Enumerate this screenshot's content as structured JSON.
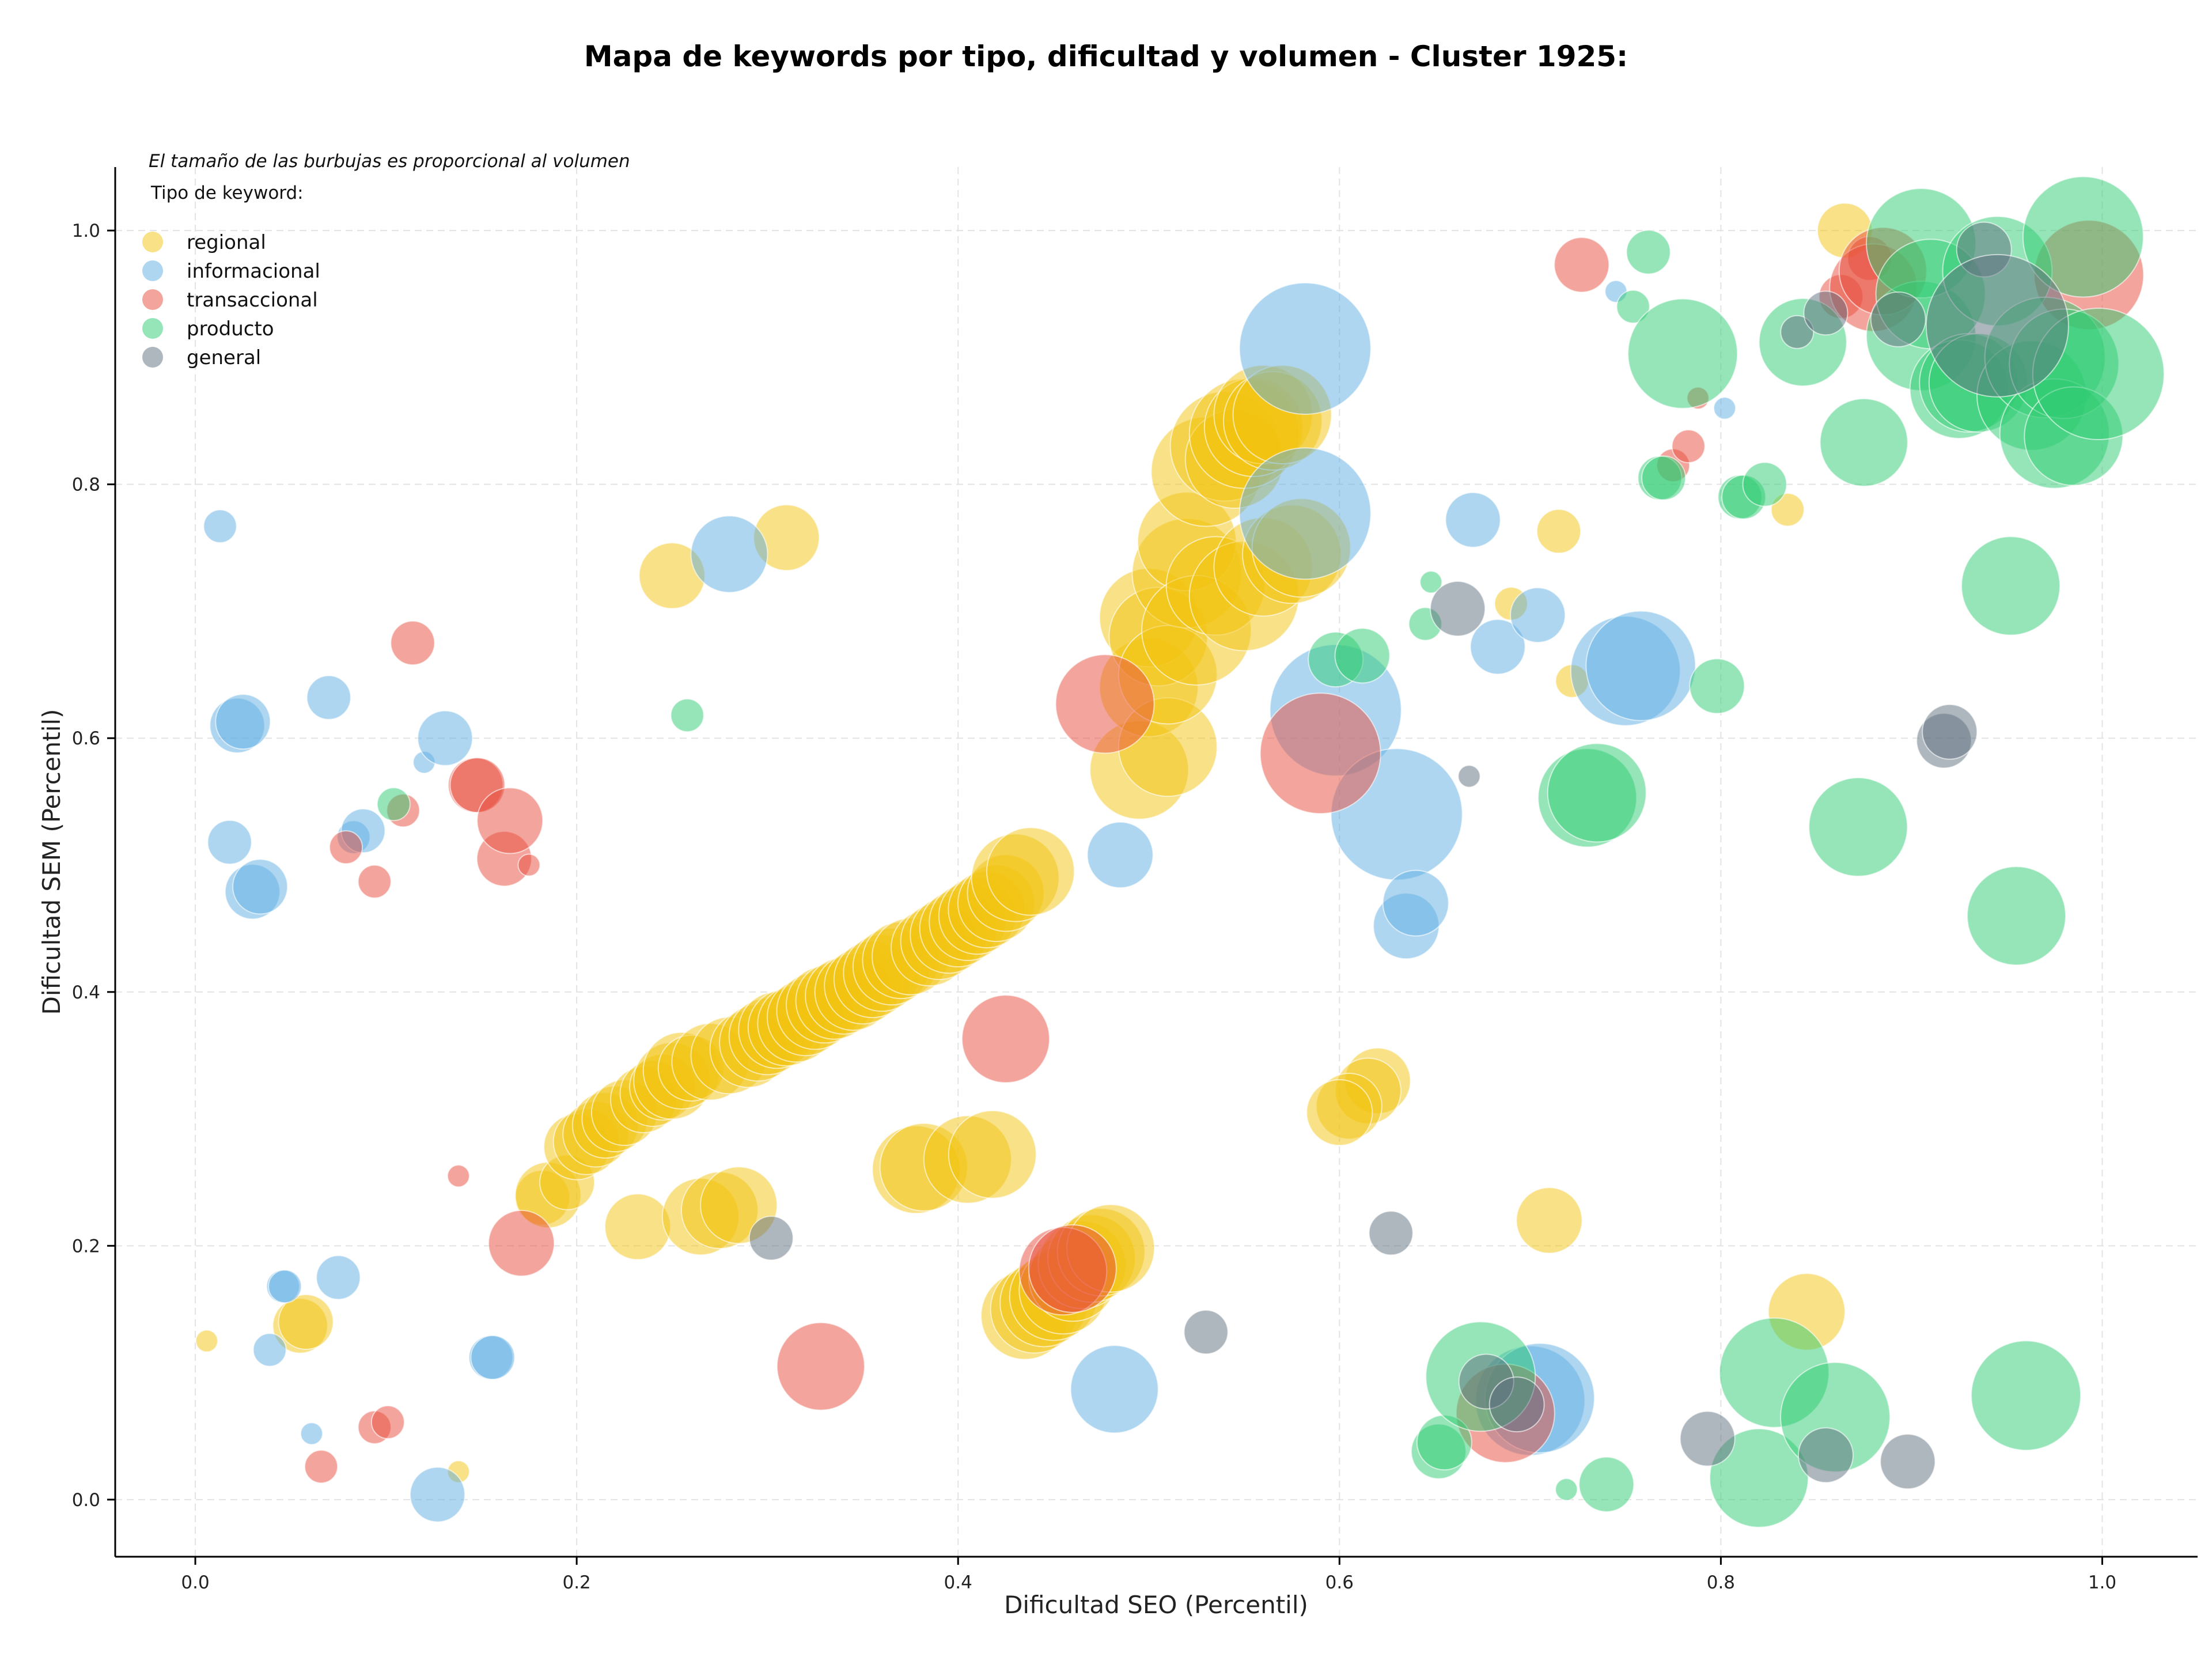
{
  "chart_data": {
    "type": "scatter",
    "title": "Mapa de keywords por tipo, dificultad y volumen - Cluster 1925:",
    "xlabel": "Dificultad SEO (Percentil)",
    "ylabel": "Dificultad SEM (Percentil)",
    "note": "El tamaño de las burbujas es proporcional al volumen",
    "xlim": [
      -0.042,
      1.05
    ],
    "ylim": [
      -0.045,
      1.05
    ],
    "xticks": [
      "0.0",
      "0.2",
      "0.4",
      "0.6",
      "0.8",
      "1.0"
    ],
    "yticks": [
      "0.0",
      "0.2",
      "0.4",
      "0.6",
      "0.8",
      "1.0"
    ],
    "grid": true,
    "legend": {
      "title": "Tipo de keyword:",
      "position": "top-left"
    },
    "series": [
      {
        "name": "regional",
        "color": "#F1C40F",
        "points": [
          [
            0.006,
            0.125,
            2
          ],
          [
            0.055,
            0.137,
            5
          ],
          [
            0.058,
            0.14,
            5
          ],
          [
            0.138,
            0.022,
            2
          ],
          [
            0.182,
            0.238,
            5
          ],
          [
            0.185,
            0.24,
            6
          ],
          [
            0.195,
            0.25,
            5
          ],
          [
            0.2,
            0.278,
            6
          ],
          [
            0.205,
            0.282,
            6
          ],
          [
            0.21,
            0.288,
            6
          ],
          [
            0.215,
            0.295,
            6
          ],
          [
            0.22,
            0.3,
            6
          ],
          [
            0.225,
            0.305,
            6
          ],
          [
            0.232,
            0.215,
            6
          ],
          [
            0.235,
            0.315,
            6
          ],
          [
            0.24,
            0.32,
            6
          ],
          [
            0.245,
            0.325,
            6
          ],
          [
            0.25,
            0.33,
            7
          ],
          [
            0.255,
            0.338,
            7
          ],
          [
            0.26,
            0.34,
            6
          ],
          [
            0.265,
            0.223,
            7
          ],
          [
            0.27,
            0.345,
            7
          ],
          [
            0.275,
            0.228,
            7
          ],
          [
            0.28,
            0.35,
            7
          ],
          [
            0.285,
            0.232,
            7
          ],
          [
            0.29,
            0.355,
            7
          ],
          [
            0.295,
            0.36,
            7
          ],
          [
            0.3,
            0.365,
            7
          ],
          [
            0.305,
            0.37,
            7
          ],
          [
            0.31,
            0.372,
            7
          ],
          [
            0.315,
            0.375,
            7
          ],
          [
            0.32,
            0.38,
            7
          ],
          [
            0.325,
            0.385,
            7
          ],
          [
            0.33,
            0.39,
            7
          ],
          [
            0.335,
            0.393,
            7
          ],
          [
            0.34,
            0.397,
            7
          ],
          [
            0.345,
            0.4,
            7
          ],
          [
            0.35,
            0.405,
            7
          ],
          [
            0.355,
            0.41,
            7
          ],
          [
            0.36,
            0.415,
            7
          ],
          [
            0.365,
            0.42,
            7
          ],
          [
            0.37,
            0.425,
            7
          ],
          [
            0.375,
            0.428,
            7
          ],
          [
            0.378,
            0.26,
            8
          ],
          [
            0.382,
            0.262,
            8
          ],
          [
            0.385,
            0.435,
            7
          ],
          [
            0.39,
            0.44,
            7
          ],
          [
            0.395,
            0.445,
            7
          ],
          [
            0.4,
            0.45,
            7
          ],
          [
            0.405,
            0.455,
            7
          ],
          [
            0.405,
            0.268,
            8
          ],
          [
            0.41,
            0.46,
            7
          ],
          [
            0.415,
            0.465,
            7
          ],
          [
            0.418,
            0.272,
            8
          ],
          [
            0.42,
            0.47,
            7
          ],
          [
            0.425,
            0.478,
            7
          ],
          [
            0.43,
            0.49,
            8
          ],
          [
            0.435,
            0.145,
            8
          ],
          [
            0.438,
            0.495,
            8
          ],
          [
            0.44,
            0.15,
            8
          ],
          [
            0.445,
            0.155,
            8
          ],
          [
            0.45,
            0.16,
            8
          ],
          [
            0.455,
            0.165,
            8
          ],
          [
            0.46,
            0.175,
            8
          ],
          [
            0.465,
            0.185,
            8
          ],
          [
            0.47,
            0.19,
            8
          ],
          [
            0.475,
            0.195,
            8
          ],
          [
            0.48,
            0.198,
            8
          ],
          [
            0.25,
            0.728,
            6
          ],
          [
            0.31,
            0.758,
            6
          ],
          [
            0.495,
            0.575,
            9
          ],
          [
            0.5,
            0.64,
            9
          ],
          [
            0.5,
            0.695,
            9
          ],
          [
            0.505,
            0.68,
            9
          ],
          [
            0.51,
            0.593,
            9
          ],
          [
            0.51,
            0.65,
            9
          ],
          [
            0.52,
            0.73,
            10
          ],
          [
            0.52,
            0.755,
            9
          ],
          [
            0.525,
            0.685,
            10
          ],
          [
            0.53,
            0.81,
            10
          ],
          [
            0.535,
            0.72,
            9
          ],
          [
            0.54,
            0.83,
            10
          ],
          [
            0.545,
            0.82,
            9
          ],
          [
            0.55,
            0.84,
            10
          ],
          [
            0.55,
            0.712,
            10
          ],
          [
            0.555,
            0.845,
            9
          ],
          [
            0.56,
            0.735,
            9
          ],
          [
            0.56,
            0.855,
            9
          ],
          [
            0.565,
            0.85,
            9
          ],
          [
            0.57,
            0.855,
            9
          ],
          [
            0.575,
            0.745,
            9
          ],
          [
            0.58,
            0.75,
            9
          ],
          [
            0.62,
            0.33,
            6
          ],
          [
            0.615,
            0.322,
            6
          ],
          [
            0.605,
            0.31,
            6
          ],
          [
            0.6,
            0.305,
            6
          ],
          [
            0.69,
            0.706,
            3
          ],
          [
            0.715,
            0.763,
            4
          ],
          [
            0.722,
            0.645,
            3
          ],
          [
            0.71,
            0.22,
            6
          ],
          [
            0.835,
            0.78,
            3
          ],
          [
            0.845,
            0.148,
            7
          ],
          [
            0.865,
            1.0,
            5
          ]
        ]
      },
      {
        "name": "informacional",
        "color": "#5DADE2",
        "points": [
          [
            0.013,
            0.767,
            3
          ],
          [
            0.018,
            0.518,
            4
          ],
          [
            0.022,
            0.61,
            5
          ],
          [
            0.025,
            0.613,
            5
          ],
          [
            0.03,
            0.479,
            5
          ],
          [
            0.034,
            0.483,
            5
          ],
          [
            0.039,
            0.118,
            3
          ],
          [
            0.046,
            0.168,
            3
          ],
          [
            0.047,
            0.168,
            3
          ],
          [
            0.061,
            0.052,
            2
          ],
          [
            0.07,
            0.632,
            4
          ],
          [
            0.075,
            0.175,
            4
          ],
          [
            0.083,
            0.522,
            3
          ],
          [
            0.088,
            0.527,
            4
          ],
          [
            0.12,
            0.581,
            2
          ],
          [
            0.127,
            0.004,
            5
          ],
          [
            0.131,
            0.6,
            5
          ],
          [
            0.155,
            0.112,
            4
          ],
          [
            0.156,
            0.112,
            4
          ],
          [
            0.28,
            0.745,
            7
          ],
          [
            0.482,
            0.087,
            8
          ],
          [
            0.485,
            0.508,
            6
          ],
          [
            0.582,
            0.907,
            12
          ],
          [
            0.582,
            0.777,
            12
          ],
          [
            0.598,
            0.622,
            12
          ],
          [
            0.63,
            0.54,
            12
          ],
          [
            0.635,
            0.452,
            6
          ],
          [
            0.64,
            0.47,
            6
          ],
          [
            0.67,
            0.772,
            5
          ],
          [
            0.683,
            0.672,
            5
          ],
          [
            0.7,
            0.078,
            10
          ],
          [
            0.705,
            0.08,
            10
          ],
          [
            0.704,
            0.697,
            5
          ],
          [
            0.745,
            0.952,
            2
          ],
          [
            0.75,
            0.653,
            10
          ],
          [
            0.758,
            0.657,
            10
          ],
          [
            0.802,
            0.86,
            2
          ]
        ]
      },
      {
        "name": "transaccional",
        "color": "#E74C3C",
        "points": [
          [
            0.066,
            0.026,
            3
          ],
          [
            0.079,
            0.514,
            3
          ],
          [
            0.094,
            0.487,
            3
          ],
          [
            0.094,
            0.057,
            3
          ],
          [
            0.101,
            0.061,
            3
          ],
          [
            0.109,
            0.543,
            3
          ],
          [
            0.114,
            0.675,
            4
          ],
          [
            0.138,
            0.255,
            2
          ],
          [
            0.147,
            0.563,
            5
          ],
          [
            0.148,
            0.563,
            5
          ],
          [
            0.162,
            0.505,
            5
          ],
          [
            0.165,
            0.535,
            6
          ],
          [
            0.175,
            0.5,
            2
          ],
          [
            0.171,
            0.202,
            6
          ],
          [
            0.328,
            0.105,
            8
          ],
          [
            0.425,
            0.363,
            8
          ],
          [
            0.455,
            0.18,
            8
          ],
          [
            0.46,
            0.182,
            8
          ],
          [
            0.477,
            0.627,
            9
          ],
          [
            0.59,
            0.588,
            11
          ],
          [
            0.687,
            0.068,
            9
          ],
          [
            0.727,
            0.973,
            5
          ],
          [
            0.775,
            0.815,
            3
          ],
          [
            0.783,
            0.83,
            3
          ],
          [
            0.788,
            0.868,
            2
          ],
          [
            0.863,
            0.948,
            4
          ],
          [
            0.878,
            0.978,
            4
          ],
          [
            0.88,
            0.955,
            8
          ],
          [
            0.885,
            0.968,
            8
          ],
          [
            0.993,
            0.965,
            10
          ]
        ]
      },
      {
        "name": "producto",
        "color": "#2ECC71",
        "points": [
          [
            0.104,
            0.548,
            3
          ],
          [
            0.258,
            0.618,
            3
          ],
          [
            0.598,
            0.662,
            5
          ],
          [
            0.612,
            0.665,
            5
          ],
          [
            0.645,
            0.69,
            3
          ],
          [
            0.648,
            0.723,
            2
          ],
          [
            0.652,
            0.038,
            5
          ],
          [
            0.655,
            0.045,
            5
          ],
          [
            0.674,
            0.097,
            10
          ],
          [
            0.719,
            0.008,
            2
          ],
          [
            0.73,
            0.553,
            9
          ],
          [
            0.735,
            0.557,
            9
          ],
          [
            0.74,
            0.012,
            5
          ],
          [
            0.754,
            0.94,
            3
          ],
          [
            0.762,
            0.983,
            4
          ],
          [
            0.768,
            0.805,
            4
          ],
          [
            0.77,
            0.805,
            4
          ],
          [
            0.78,
            0.903,
            10
          ],
          [
            0.798,
            0.641,
            5
          ],
          [
            0.81,
            0.79,
            4
          ],
          [
            0.812,
            0.79,
            4
          ],
          [
            0.823,
            0.8,
            4
          ],
          [
            0.82,
            0.017,
            9
          ],
          [
            0.828,
            0.1,
            10
          ],
          [
            0.843,
            0.912,
            8
          ],
          [
            0.86,
            0.065,
            10
          ],
          [
            0.872,
            0.53,
            9
          ],
          [
            0.875,
            0.833,
            8
          ],
          [
            0.905,
            0.917,
            10
          ],
          [
            0.905,
            0.99,
            10
          ],
          [
            0.91,
            0.95,
            10
          ],
          [
            0.925,
            0.875,
            9
          ],
          [
            0.93,
            0.88,
            9
          ],
          [
            0.935,
            0.88,
            9
          ],
          [
            0.945,
            0.968,
            10
          ],
          [
            0.952,
            0.72,
            9
          ],
          [
            0.955,
            0.46,
            9
          ],
          [
            0.96,
            0.082,
            10
          ],
          [
            0.963,
            0.87,
            10
          ],
          [
            0.97,
            0.9,
            11
          ],
          [
            0.975,
            0.84,
            10
          ],
          [
            0.98,
            0.895,
            10
          ],
          [
            0.985,
            0.838,
            9
          ],
          [
            0.99,
            0.995,
            11
          ],
          [
            0.998,
            0.887,
            12
          ]
        ]
      },
      {
        "name": "general",
        "color": "#5D6D7E",
        "points": [
          [
            0.302,
            0.206,
            4
          ],
          [
            0.53,
            0.132,
            4
          ],
          [
            0.627,
            0.21,
            4
          ],
          [
            0.662,
            0.702,
            5
          ],
          [
            0.668,
            0.57,
            2
          ],
          [
            0.677,
            0.093,
            5
          ],
          [
            0.693,
            0.075,
            5
          ],
          [
            0.793,
            0.048,
            5
          ],
          [
            0.84,
            0.92,
            3
          ],
          [
            0.855,
            0.035,
            5
          ],
          [
            0.855,
            0.935,
            4
          ],
          [
            0.893,
            0.93,
            5
          ],
          [
            0.898,
            0.03,
            5
          ],
          [
            0.917,
            0.598,
            5
          ],
          [
            0.92,
            0.605,
            5
          ],
          [
            0.938,
            0.985,
            5
          ],
          [
            0.945,
            0.925,
            13
          ]
        ]
      }
    ]
  }
}
